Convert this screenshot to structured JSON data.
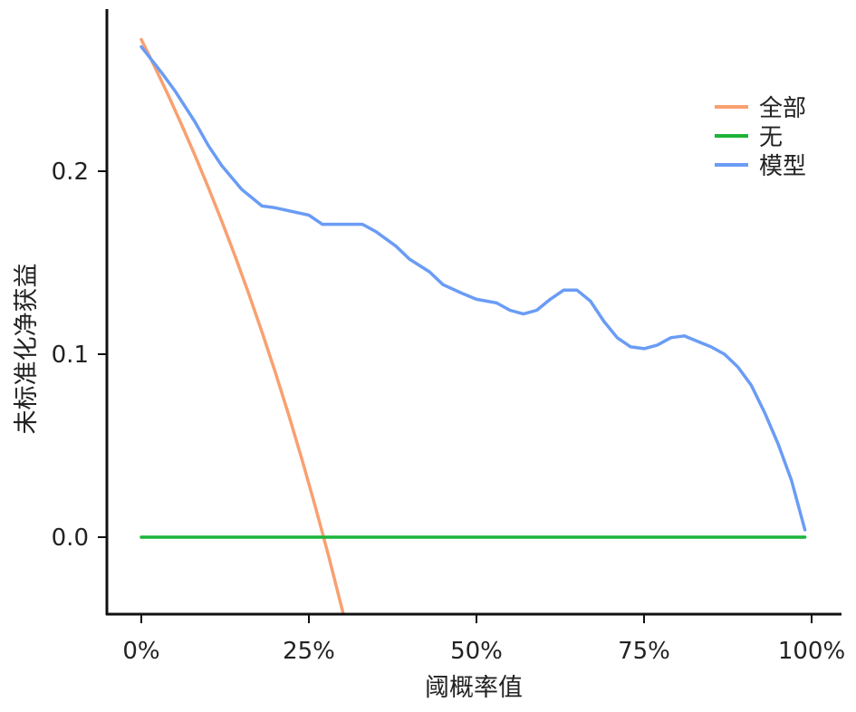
{
  "chart_data": {
    "type": "line",
    "title": "",
    "xlabel": "阈概率值",
    "ylabel": "未标准化净获益",
    "xlim": [
      -5,
      104
    ],
    "ylim": [
      -0.042,
      0.289
    ],
    "xticks": [
      0,
      25,
      50,
      75,
      100
    ],
    "xtick_labels": [
      "0%",
      "25%",
      "50%",
      "75%",
      "100%"
    ],
    "yticks": [
      0.0,
      0.1,
      0.2
    ],
    "ytick_labels": [
      "0.0",
      "0.1",
      "0.2"
    ],
    "grid": false,
    "legend_position": "top-right",
    "series": [
      {
        "name": "全部",
        "color": "#F9A070",
        "x": [
          0,
          2,
          4,
          6,
          8,
          10,
          12,
          14,
          16,
          18,
          20,
          22,
          24,
          26,
          28,
          30,
          31
        ],
        "y": [
          0.272,
          0.2571,
          0.2417,
          0.2255,
          0.2087,
          0.1911,
          0.1727,
          0.1535,
          0.1333,
          0.1122,
          0.09,
          0.0667,
          0.0421,
          0.0162,
          -0.0111,
          -0.04,
          -0.055
        ]
      },
      {
        "name": "无",
        "color": "#1DB33A",
        "x": [
          0,
          99
        ],
        "y": [
          0,
          0
        ]
      },
      {
        "name": "模型",
        "color": "#6A9CF5",
        "x": [
          0,
          3,
          5,
          8,
          10,
          12,
          15,
          18,
          20,
          25,
          27,
          30,
          33,
          35,
          38,
          40,
          43,
          45,
          48,
          50,
          53,
          55,
          57,
          59,
          61,
          63,
          65,
          67,
          69,
          71,
          73,
          75,
          77,
          79,
          81,
          83,
          85,
          87,
          89,
          91,
          93,
          95,
          97,
          99
        ],
        "y": [
          0.268,
          0.254,
          0.244,
          0.227,
          0.214,
          0.203,
          0.19,
          0.181,
          0.18,
          0.176,
          0.171,
          0.171,
          0.171,
          0.167,
          0.159,
          0.152,
          0.145,
          0.138,
          0.133,
          0.13,
          0.128,
          0.124,
          0.122,
          0.124,
          0.13,
          0.135,
          0.135,
          0.129,
          0.118,
          0.109,
          0.104,
          0.103,
          0.105,
          0.109,
          0.11,
          0.107,
          0.104,
          0.1,
          0.093,
          0.083,
          0.068,
          0.051,
          0.031,
          0.004
        ]
      }
    ]
  }
}
